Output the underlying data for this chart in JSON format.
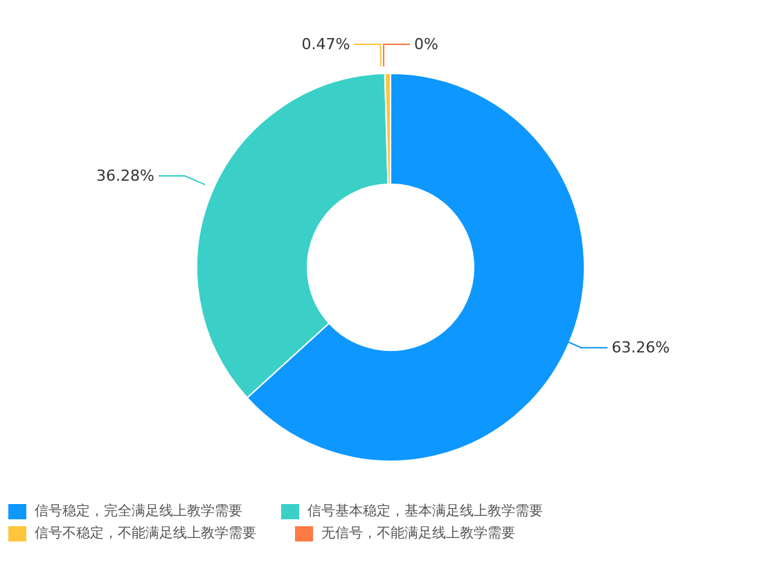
{
  "chart_data": {
    "type": "donut",
    "categories": [
      "信号稳定，完全满足线上教学需要",
      "信号基本稳定，基本满足线上教学需要",
      "信号不稳定，不能满足线上教学需要",
      "无信号，不能满足线上教学需要"
    ],
    "values": [
      63.26,
      36.28,
      0.47,
      0
    ],
    "colors": [
      "#0e97ff",
      "#3ad0c8",
      "#ffc53d",
      "#ff7a45"
    ],
    "value_labels": [
      "63.26%",
      "36.28%",
      "0.47%",
      "0%"
    ],
    "legend": "bottom"
  }
}
